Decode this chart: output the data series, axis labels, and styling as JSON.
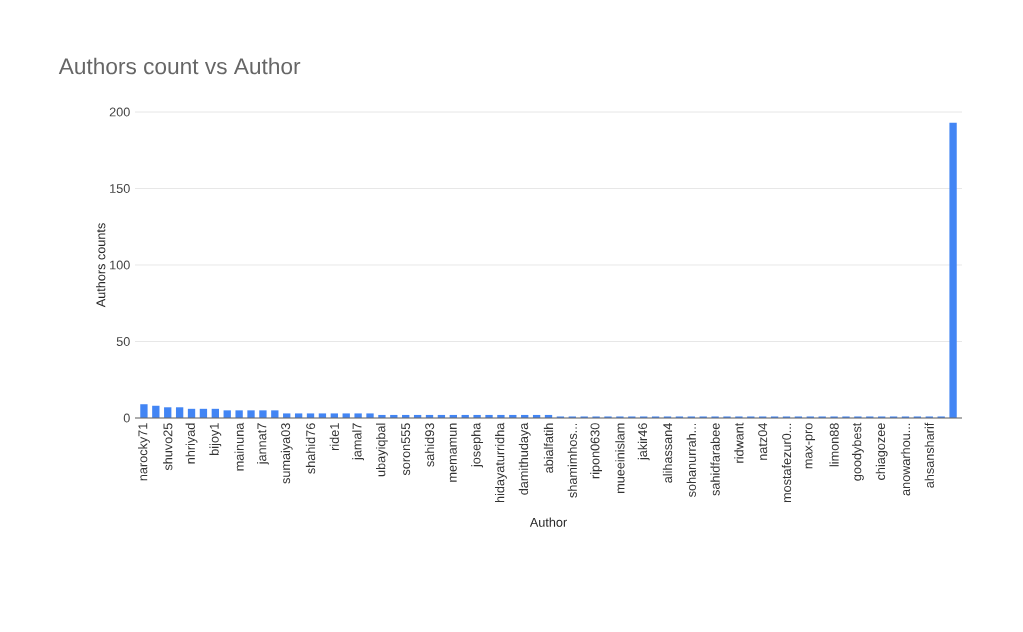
{
  "chart_data": {
    "type": "bar",
    "title": "Authors count vs Author",
    "xlabel": "Author",
    "ylabel": "Authors counts",
    "categories": [
      "narocky71",
      null,
      "shuvo25",
      null,
      "nhriyad",
      null,
      "bijoy1",
      null,
      "mainuna",
      null,
      "jannat7",
      null,
      "sumaiya03",
      null,
      "shahid76",
      null,
      "ride1",
      null,
      "jamal7",
      null,
      "ubayiqbal",
      null,
      "soron555",
      null,
      "sahid93",
      null,
      "memamun",
      null,
      "josepha",
      null,
      "hidayaturridha",
      null,
      "damithudaya",
      null,
      "abialfatih",
      null,
      "shamimhos...",
      null,
      "ripon0630",
      null,
      "mueeinislam",
      null,
      "jakir46",
      null,
      "alihassan4",
      null,
      "sohanurrah...",
      null,
      "sahidfarabee",
      null,
      "ridwant",
      null,
      "natz04",
      null,
      "mostafezur0...",
      null,
      "max-pro",
      null,
      "limon88",
      null,
      "goodybest",
      null,
      "chiagozee",
      null,
      "anowarhou...",
      null,
      "ahsansharif",
      null,
      null
    ],
    "values": [
      9,
      8,
      7,
      7,
      6,
      6,
      6,
      5,
      5,
      5,
      5,
      5,
      3,
      3,
      3,
      3,
      3,
      3,
      3,
      3,
      2,
      2,
      2,
      2,
      2,
      2,
      2,
      2,
      2,
      2,
      2,
      2,
      2,
      2,
      2,
      1,
      1,
      1,
      1,
      1,
      1,
      1,
      1,
      1,
      1,
      1,
      1,
      1,
      1,
      1,
      1,
      1,
      1,
      1,
      1,
      1,
      1,
      1,
      1,
      1,
      1,
      1,
      1,
      1,
      1,
      1,
      1,
      1,
      193
    ],
    "color": "#4285f4",
    "ylim": [
      0,
      200
    ],
    "yticks": [
      0,
      50,
      100,
      150,
      200
    ],
    "grid": "y"
  }
}
